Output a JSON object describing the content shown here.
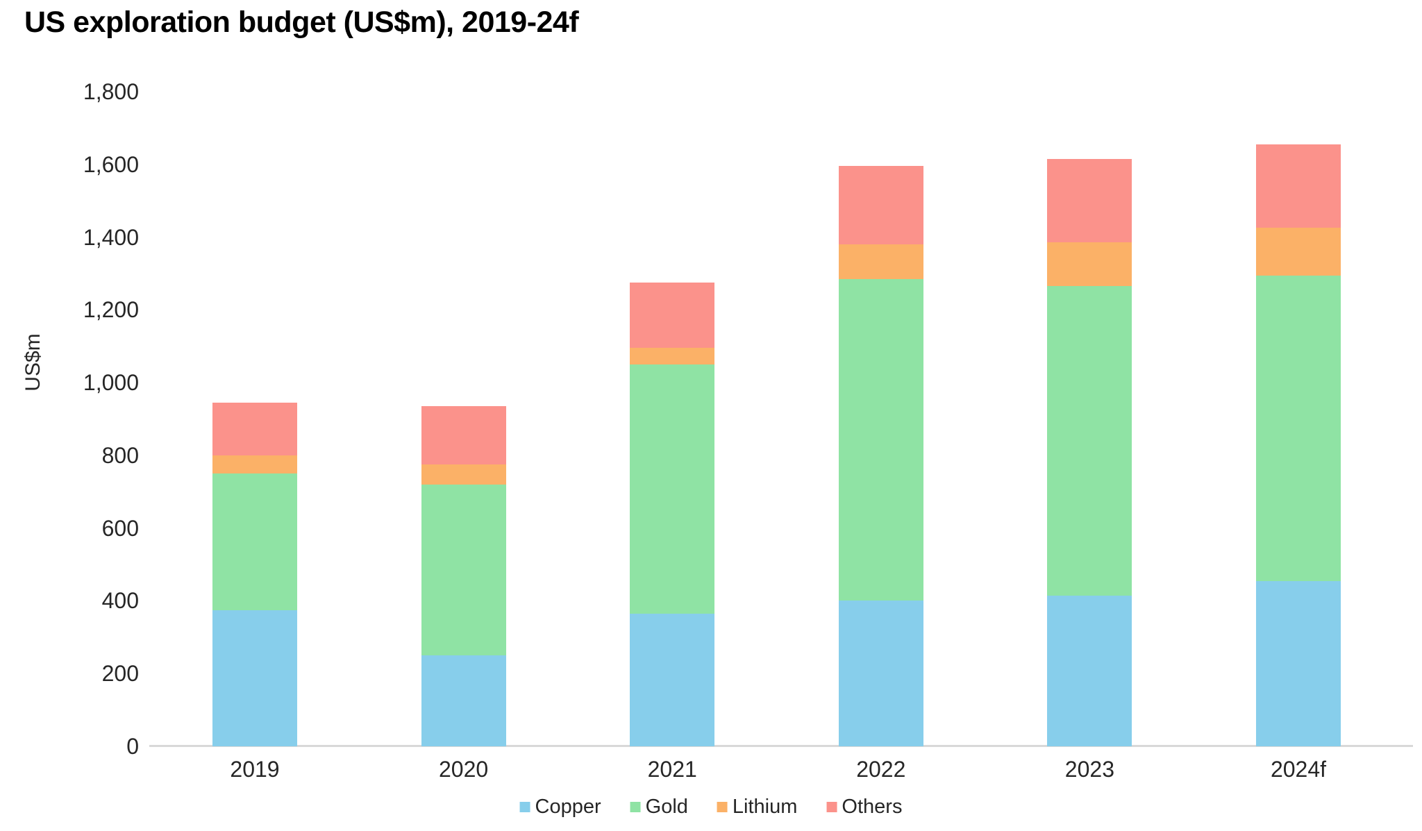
{
  "title": "US exploration budget (US$m), 2019-24f",
  "chart_data": {
    "type": "bar",
    "stacked": true,
    "title": "US exploration budget (US$m), 2019-24f",
    "xlabel": "",
    "ylabel": "US$m",
    "categories": [
      "2019",
      "2020",
      "2021",
      "2022",
      "2023",
      "2024f"
    ],
    "series": [
      {
        "name": "Copper",
        "color": "#87CEEB",
        "values": [
          375,
          250,
          365,
          400,
          415,
          455
        ]
      },
      {
        "name": "Gold",
        "color": "#8FE3A4",
        "values": [
          375,
          470,
          685,
          885,
          850,
          840
        ]
      },
      {
        "name": "Lithium",
        "color": "#FBB167",
        "values": [
          50,
          55,
          45,
          95,
          120,
          130
        ]
      },
      {
        "name": "Others",
        "color": "#FB928B",
        "values": [
          145,
          160,
          180,
          215,
          230,
          230
        ]
      }
    ],
    "totals": [
      945,
      935,
      1275,
      1595,
      1615,
      1655
    ],
    "ylim": [
      0,
      1800
    ],
    "y_tick_step": 200,
    "y_tick_labels": [
      "0",
      "200",
      "400",
      "600",
      "800",
      "1,000",
      "1,200",
      "1,400",
      "1,600",
      "1,800"
    ],
    "grid": false,
    "legend_position": "bottom",
    "legend_labels": [
      "Copper",
      "Gold",
      "Lithium",
      "Others"
    ],
    "axis_line_color": "#D8D8D8",
    "text_color": "#262626"
  }
}
